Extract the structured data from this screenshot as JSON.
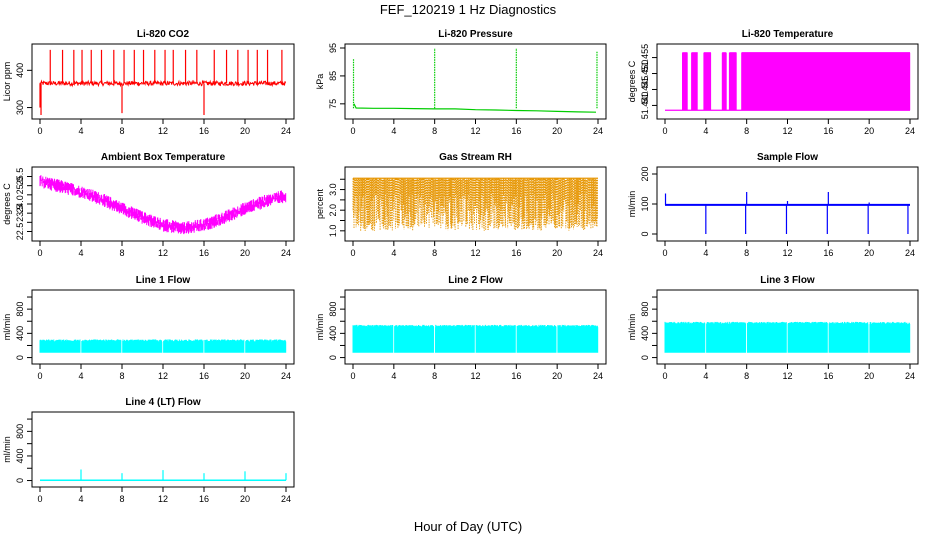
{
  "figure": {
    "title": "FEF_120219  1 Hz Diagnostics",
    "xlabel": "Hour of Day (UTC)"
  },
  "chart_data": [
    {
      "id": "co2",
      "type": "line",
      "title": "Li-820 CO2",
      "ylabel": "Licor ppm",
      "color": "#ff0000",
      "xlim": [
        0,
        24
      ],
      "ylim": [
        280,
        460
      ],
      "xticks": [
        0,
        4,
        8,
        12,
        16,
        20,
        24
      ],
      "yticks": [
        300,
        400
      ],
      "ytick_labels": [
        "300",
        "400"
      ],
      "baseline": 365,
      "noise": 6,
      "events": [
        {
          "x": 0.0,
          "y": 300
        },
        {
          "x": 0.1,
          "y": 280
        },
        {
          "x": 1.0,
          "y": 455
        },
        {
          "x": 2.2,
          "y": 455
        },
        {
          "x": 3.3,
          "y": 455
        },
        {
          "x": 4.1,
          "y": 455
        },
        {
          "x": 5.0,
          "y": 455
        },
        {
          "x": 6.0,
          "y": 455
        },
        {
          "x": 7.2,
          "y": 455
        },
        {
          "x": 8.0,
          "y": 285
        },
        {
          "x": 8.2,
          "y": 455
        },
        {
          "x": 9.2,
          "y": 455
        },
        {
          "x": 10.1,
          "y": 455
        },
        {
          "x": 11.2,
          "y": 455
        },
        {
          "x": 12.2,
          "y": 455
        },
        {
          "x": 13.0,
          "y": 455
        },
        {
          "x": 14.2,
          "y": 455
        },
        {
          "x": 15.3,
          "y": 455
        },
        {
          "x": 16.0,
          "y": 280
        },
        {
          "x": 17.0,
          "y": 455
        },
        {
          "x": 18.2,
          "y": 455
        },
        {
          "x": 19.3,
          "y": 455
        },
        {
          "x": 20.3,
          "y": 455
        },
        {
          "x": 21.2,
          "y": 455
        },
        {
          "x": 22.2,
          "y": 455
        },
        {
          "x": 23.6,
          "y": 455
        }
      ]
    },
    {
      "id": "pressure",
      "type": "line",
      "title": "Li-820 Pressure",
      "ylabel": "kPa",
      "color": "#00cc00",
      "xlim": [
        0,
        24
      ],
      "ylim": [
        71,
        95
      ],
      "xticks": [
        0,
        4,
        8,
        12,
        16,
        20,
        24
      ],
      "yticks": [
        75,
        85,
        95
      ],
      "ytick_labels": [
        "75",
        "85",
        "95"
      ],
      "series": [
        {
          "x": [
            0.1,
            0.3,
            2,
            4,
            6,
            8,
            10,
            12,
            14,
            16,
            18,
            20,
            22,
            23.8
          ],
          "y": [
            75,
            73.5,
            73.4,
            73.4,
            73.3,
            73.2,
            73.2,
            72.9,
            72.8,
            72.6,
            72.5,
            72.3,
            72.1,
            72.0
          ]
        }
      ],
      "spikes": [
        {
          "x": 0.05,
          "y": 91
        },
        {
          "x": 8.0,
          "y": 95
        },
        {
          "x": 16.0,
          "y": 95
        },
        {
          "x": 23.9,
          "y": 94
        }
      ]
    },
    {
      "id": "li_temp",
      "type": "line",
      "title": "Li-820 Temperature",
      "ylabel": "degrees C",
      "color": "#ff00ff",
      "xlim": [
        0,
        24
      ],
      "ylim": [
        51.437,
        51.458
      ],
      "xticks": [
        0,
        4,
        8,
        12,
        16,
        20,
        24
      ],
      "yticks": [
        51.44,
        51.445,
        51.45,
        51.455
      ],
      "ytick_labels": [
        "51.440",
        "51.445",
        "51.450",
        "51.455"
      ],
      "levels": [
        51.4385,
        51.4565
      ],
      "dense_segments": [
        [
          1.7,
          2.2
        ],
        [
          2.6,
          3.2
        ],
        [
          3.8,
          4.5
        ],
        [
          5.6,
          6.0
        ],
        [
          6.3,
          7.0
        ],
        [
          7.5,
          24.0
        ]
      ]
    },
    {
      "id": "ambient",
      "type": "line",
      "title": "Ambient Box Temperature",
      "ylabel": "degrees C",
      "color": "#ff00ff",
      "xlim": [
        0,
        24
      ],
      "ylim": [
        22.2,
        25.8
      ],
      "xticks": [
        0,
        4,
        8,
        12,
        16,
        20,
        24
      ],
      "yticks": [
        22.5,
        23.0,
        23.5,
        24.0,
        24.5,
        25.0,
        25.5
      ],
      "ytick_labels": [
        "22.5",
        "",
        "23.5",
        "24.0",
        "",
        "25.0",
        "25.5"
      ],
      "series": [
        {
          "x": [
            0,
            2,
            4,
            6,
            8,
            10,
            12,
            14,
            16,
            18,
            20,
            22,
            24
          ],
          "y": [
            25.3,
            25.0,
            24.7,
            24.3,
            23.8,
            23.3,
            22.9,
            22.7,
            22.9,
            23.3,
            23.8,
            24.2,
            24.5
          ]
        }
      ],
      "band": 0.45
    },
    {
      "id": "rh",
      "type": "line",
      "title": "Gas Stream RH",
      "ylabel": "percent",
      "color": "#e69500",
      "xlim": [
        0,
        24
      ],
      "ylim": [
        0.7,
        3.9
      ],
      "xticks": [
        0,
        4,
        8,
        12,
        16,
        20,
        24
      ],
      "yticks": [
        1.0,
        1.5,
        2.0,
        2.5,
        3.0,
        3.5
      ],
      "ytick_labels": [
        "1.0",
        "",
        "2.0",
        "",
        "3.0",
        ""
      ],
      "top": 3.55,
      "bottom": 1.0
    },
    {
      "id": "sample_flow",
      "type": "line",
      "title": "Sample Flow",
      "ylabel": "ml/min",
      "color": "#0000ff",
      "xlim": [
        0,
        24
      ],
      "ylim": [
        -10,
        210
      ],
      "xticks": [
        0,
        4,
        8,
        12,
        16,
        20,
        24
      ],
      "yticks": [
        0,
        100,
        200
      ],
      "ytick_labels": [
        "0",
        "100",
        "200"
      ],
      "baseline": 97,
      "spikes": [
        {
          "x": 0.05,
          "y": 135
        },
        {
          "x": 4.0,
          "y": 0
        },
        {
          "x": 7.9,
          "y": 0
        },
        {
          "x": 8.0,
          "y": 140
        },
        {
          "x": 11.9,
          "y": 0
        },
        {
          "x": 12.0,
          "y": 110
        },
        {
          "x": 15.9,
          "y": 0
        },
        {
          "x": 16.0,
          "y": 140
        },
        {
          "x": 19.9,
          "y": 0
        },
        {
          "x": 20.0,
          "y": 105
        },
        {
          "x": 23.8,
          "y": 0
        }
      ]
    },
    {
      "id": "line1",
      "type": "line",
      "title": "Line 1 Flow",
      "ylabel": "ml/min",
      "color": "#00ffff",
      "xlim": [
        0,
        24
      ],
      "ylim": [
        -40,
        1050
      ],
      "xticks": [
        0,
        4,
        8,
        12,
        16,
        20,
        24
      ],
      "yticks": [
        0,
        200,
        400,
        600,
        800,
        1000
      ],
      "ytick_labels": [
        "0",
        "",
        "400",
        "",
        "800",
        ""
      ],
      "top": 300,
      "bottom": 80,
      "gaps": [
        3.9,
        7.9,
        11.9,
        15.9,
        19.9
      ]
    },
    {
      "id": "line2",
      "type": "line",
      "title": "Line 2 Flow",
      "ylabel": "ml/min",
      "color": "#00ffff",
      "xlim": [
        0,
        24
      ],
      "ylim": [
        -40,
        1050
      ],
      "xticks": [
        0,
        4,
        8,
        12,
        16,
        20,
        24
      ],
      "yticks": [
        0,
        200,
        400,
        600,
        800,
        1000
      ],
      "ytick_labels": [
        "0",
        "",
        "400",
        "",
        "800",
        ""
      ],
      "top": 540,
      "bottom": 80,
      "gaps": [
        3.9,
        7.9,
        11.9,
        15.9,
        19.9
      ]
    },
    {
      "id": "line3",
      "type": "line",
      "title": "Line 3 Flow",
      "ylabel": "ml/min",
      "color": "#00ffff",
      "xlim": [
        0,
        24
      ],
      "ylim": [
        -40,
        1050
      ],
      "xticks": [
        0,
        4,
        8,
        12,
        16,
        20,
        24
      ],
      "yticks": [
        0,
        200,
        400,
        600,
        800,
        1000
      ],
      "ytick_labels": [
        "0",
        "",
        "400",
        "",
        "800",
        ""
      ],
      "top": 590,
      "bottom": 80,
      "gaps": [
        3.9,
        7.9,
        11.9,
        15.9,
        19.9
      ]
    },
    {
      "id": "line4",
      "type": "line",
      "title": "Line 4 (LT) Flow",
      "ylabel": "ml/min",
      "color": "#00ffff",
      "xlim": [
        0,
        24
      ],
      "ylim": [
        -40,
        1050
      ],
      "xticks": [
        0,
        4,
        8,
        12,
        16,
        20,
        24
      ],
      "yticks": [
        0,
        200,
        400,
        600,
        800,
        1000
      ],
      "ytick_labels": [
        "0",
        "",
        "400",
        "",
        "800",
        ""
      ],
      "baseline": 5,
      "spikes": [
        {
          "x": 4.0,
          "y": 180
        },
        {
          "x": 8.0,
          "y": 120
        },
        {
          "x": 12.0,
          "y": 170
        },
        {
          "x": 16.0,
          "y": 120
        },
        {
          "x": 20.0,
          "y": 150
        },
        {
          "x": 24.0,
          "y": 120
        }
      ]
    }
  ]
}
